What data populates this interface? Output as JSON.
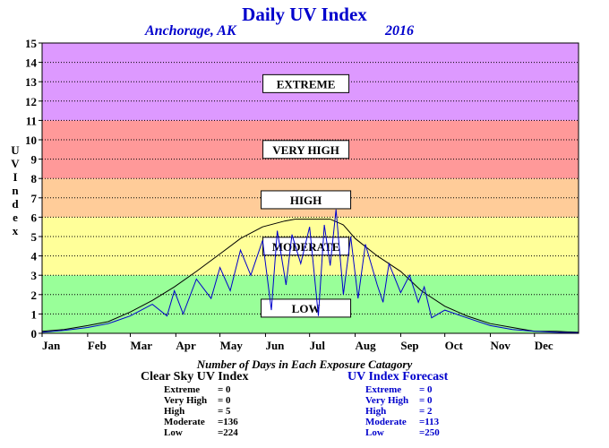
{
  "chart_data": {
    "type": "line",
    "title": "Daily UV Index",
    "subtitle_location": "Anchorage, AK",
    "subtitle_year": "2016",
    "ylabel": "UV Index",
    "ylim": [
      0,
      15
    ],
    "y_ticks": [
      "0",
      "1",
      "2",
      "3",
      "4",
      "5",
      "6",
      "7",
      "8",
      "9",
      "10",
      "11",
      "12",
      "13",
      "14",
      "15"
    ],
    "x_tick_labels": [
      "Jan",
      "Feb",
      "Mar",
      "Apr",
      "May",
      "Jun",
      "Jul",
      "Aug",
      "Sep",
      "Oct",
      "Nov",
      "Dec"
    ],
    "grid": true,
    "bands": [
      {
        "label": "LOW",
        "from": 0,
        "to": 3,
        "color": "#99ff99",
        "label_at": 1.3
      },
      {
        "label": "MODERATE",
        "from": 3,
        "to": 6,
        "color": "#ffff99",
        "label_at": 4.5
      },
      {
        "label": "HIGH",
        "from": 6,
        "to": 8,
        "color": "#ffcc99",
        "label_at": 6.9
      },
      {
        "label": "VERY HIGH",
        "from": 8,
        "to": 11,
        "color": "#ff9999",
        "label_at": 9.5
      },
      {
        "label": "EXTREME",
        "from": 11,
        "to": 15,
        "color": "#dd99ff",
        "label_at": 12.9
      }
    ],
    "series": [
      {
        "name": "Clear Sky UV Index",
        "color": "#000000",
        "x": [
          0,
          15,
          31,
          45,
          60,
          75,
          90,
          105,
          121,
          135,
          150,
          165,
          172,
          182,
          196,
          205,
          213,
          228,
          244,
          258,
          274,
          289,
          305,
          320,
          335,
          350,
          365
        ],
        "values": [
          0.1,
          0.2,
          0.4,
          0.6,
          1.1,
          1.7,
          2.4,
          3.2,
          4.1,
          4.9,
          5.5,
          5.8,
          5.9,
          5.9,
          5.9,
          5.6,
          4.9,
          4.0,
          3.2,
          2.2,
          1.4,
          0.9,
          0.5,
          0.3,
          0.1,
          0.1,
          0.05
        ]
      },
      {
        "name": "UV Index Forecast",
        "color": "#0000cc",
        "x": [
          0,
          15,
          31,
          45,
          60,
          75,
          85,
          90,
          96,
          105,
          115,
          121,
          128,
          135,
          142,
          150,
          156,
          160,
          166,
          170,
          176,
          182,
          188,
          192,
          196,
          200,
          205,
          210,
          215,
          220,
          228,
          232,
          236,
          244,
          250,
          256,
          260,
          265,
          274,
          289,
          305,
          320,
          335,
          350,
          365
        ],
        "values": [
          0.05,
          0.15,
          0.3,
          0.5,
          0.9,
          1.5,
          0.9,
          2.2,
          1.0,
          2.8,
          1.8,
          3.4,
          2.2,
          4.3,
          3.0,
          4.8,
          1.2,
          5.3,
          2.5,
          5.1,
          3.6,
          5.5,
          0.9,
          5.6,
          3.5,
          6.4,
          2.0,
          5.0,
          1.8,
          4.6,
          2.5,
          1.6,
          3.6,
          2.1,
          3.0,
          1.6,
          2.4,
          0.8,
          1.2,
          0.8,
          0.4,
          0.2,
          0.1,
          0.05,
          0.03
        ]
      }
    ],
    "stats_title": "Number of Days in Each Exposure Catagory",
    "stats": [
      {
        "heading": "Clear Sky UV Index",
        "rows": [
          {
            "label": "Extreme",
            "value": "=     0"
          },
          {
            "label": "Very High",
            "value": "=     0"
          },
          {
            "label": "High",
            "value": "=     5"
          },
          {
            "label": "Moderate",
            "value": "=136"
          },
          {
            "label": "Low",
            "value": "=224"
          }
        ]
      },
      {
        "heading": "UV Index Forecast",
        "rows": [
          {
            "label": "Extreme",
            "value": "=     0"
          },
          {
            "label": "Very High",
            "value": "=     0"
          },
          {
            "label": "High",
            "value": "=     2"
          },
          {
            "label": "Moderate",
            "value": "=113"
          },
          {
            "label": "Low",
            "value": "=250"
          }
        ]
      }
    ]
  }
}
